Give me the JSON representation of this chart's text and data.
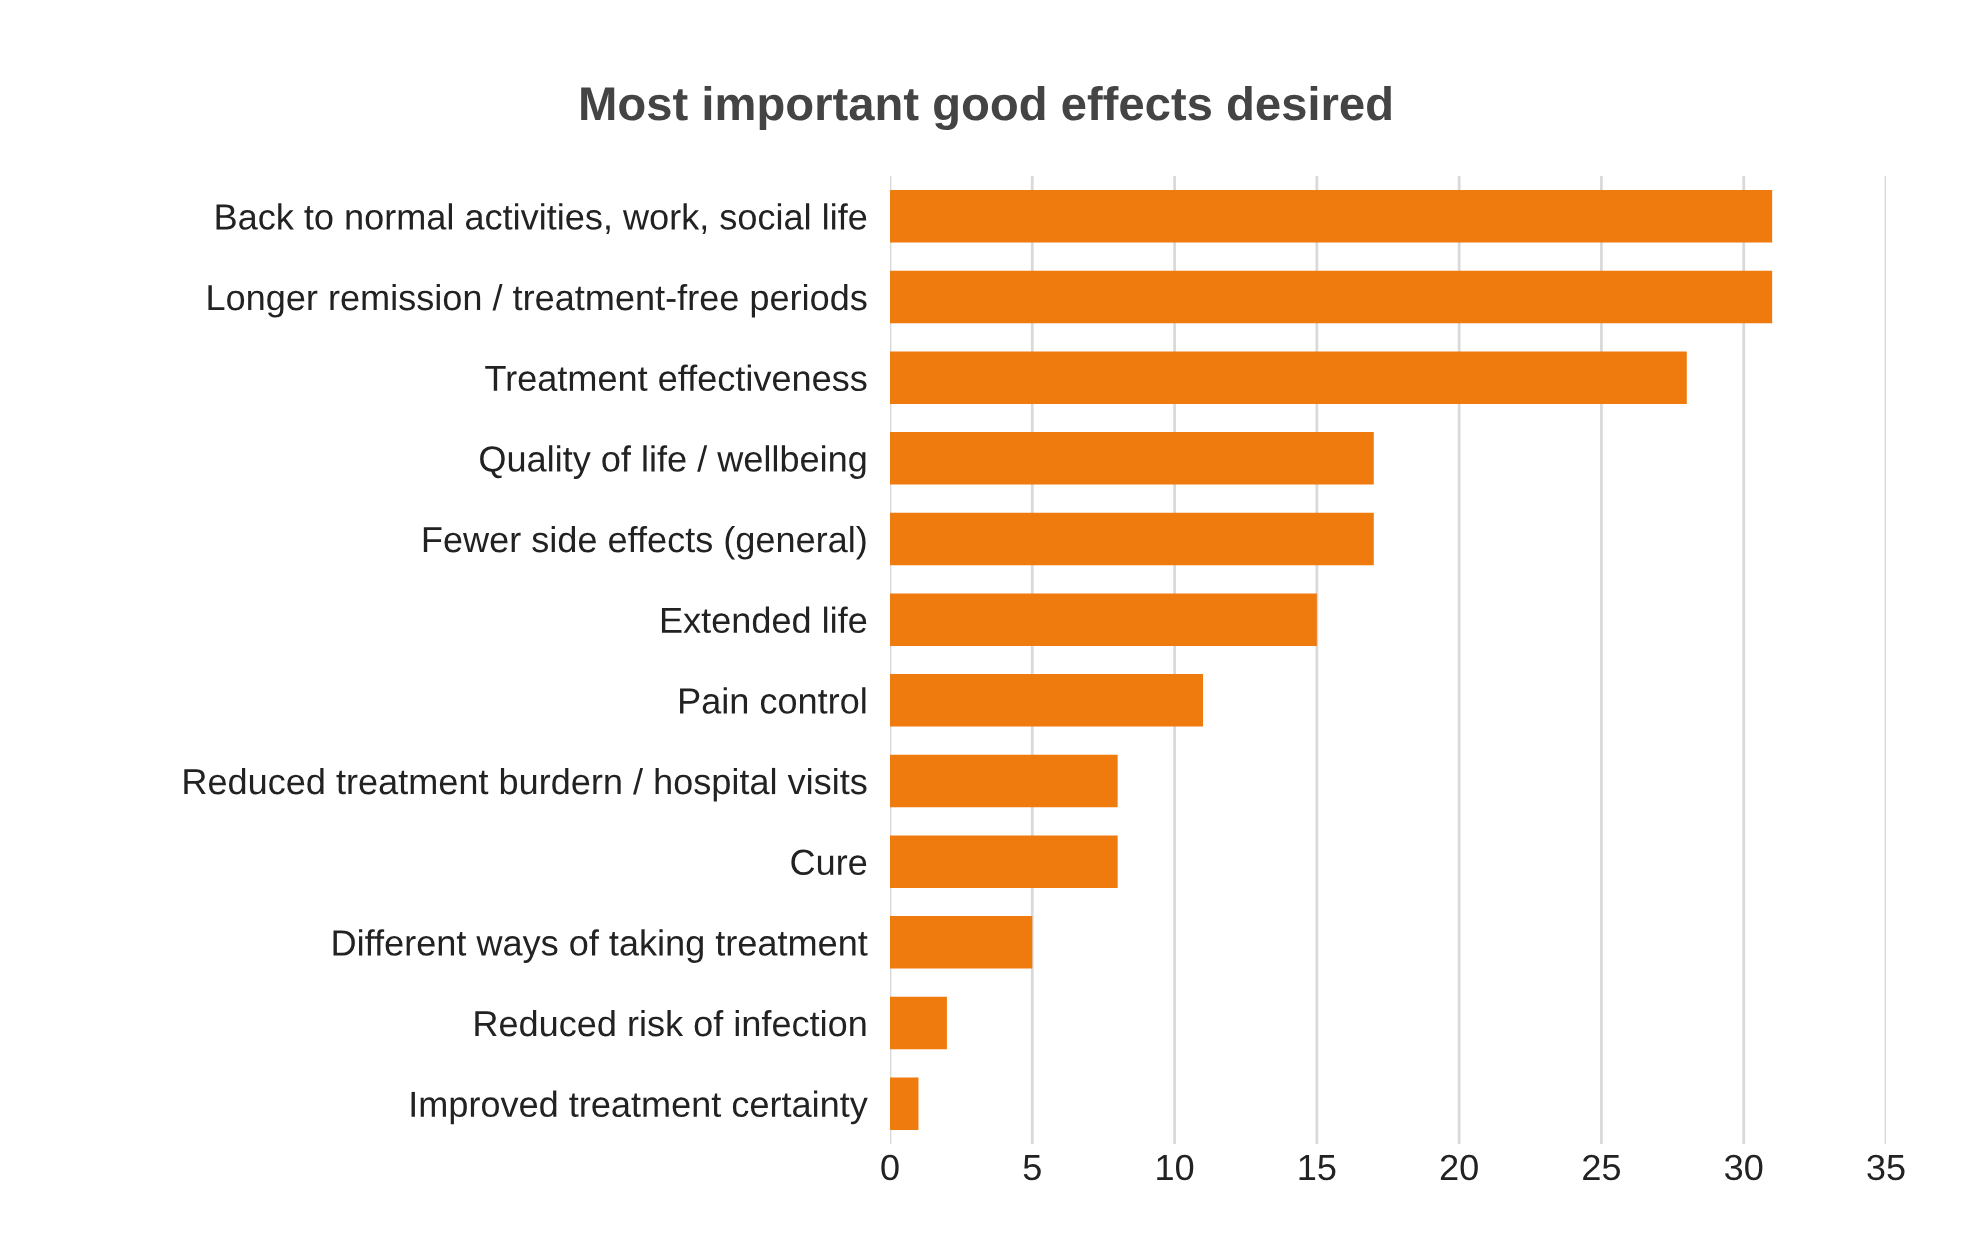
{
  "chart_data": {
    "type": "bar",
    "orientation": "horizontal",
    "title": "Most important good effects desired",
    "categories": [
      "Back to normal activities, work, social life",
      "Longer remission / treatment-free periods",
      "Treatment effectiveness",
      "Quality of life / wellbeing",
      "Fewer side effects (general)",
      "Extended life",
      "Pain control",
      "Reduced treatment burdern / hospital visits",
      "Cure",
      "Different ways of taking treatment",
      "Reduced risk of infection",
      "Improved treatment certainty"
    ],
    "values": [
      31,
      31,
      28,
      17,
      17,
      15,
      11,
      8,
      8,
      5,
      2,
      1
    ],
    "color": "#ef7a0e",
    "xlim": [
      0,
      35
    ],
    "xticks": [
      0,
      5,
      10,
      15,
      20,
      25,
      30,
      35
    ],
    "grid": "x"
  }
}
